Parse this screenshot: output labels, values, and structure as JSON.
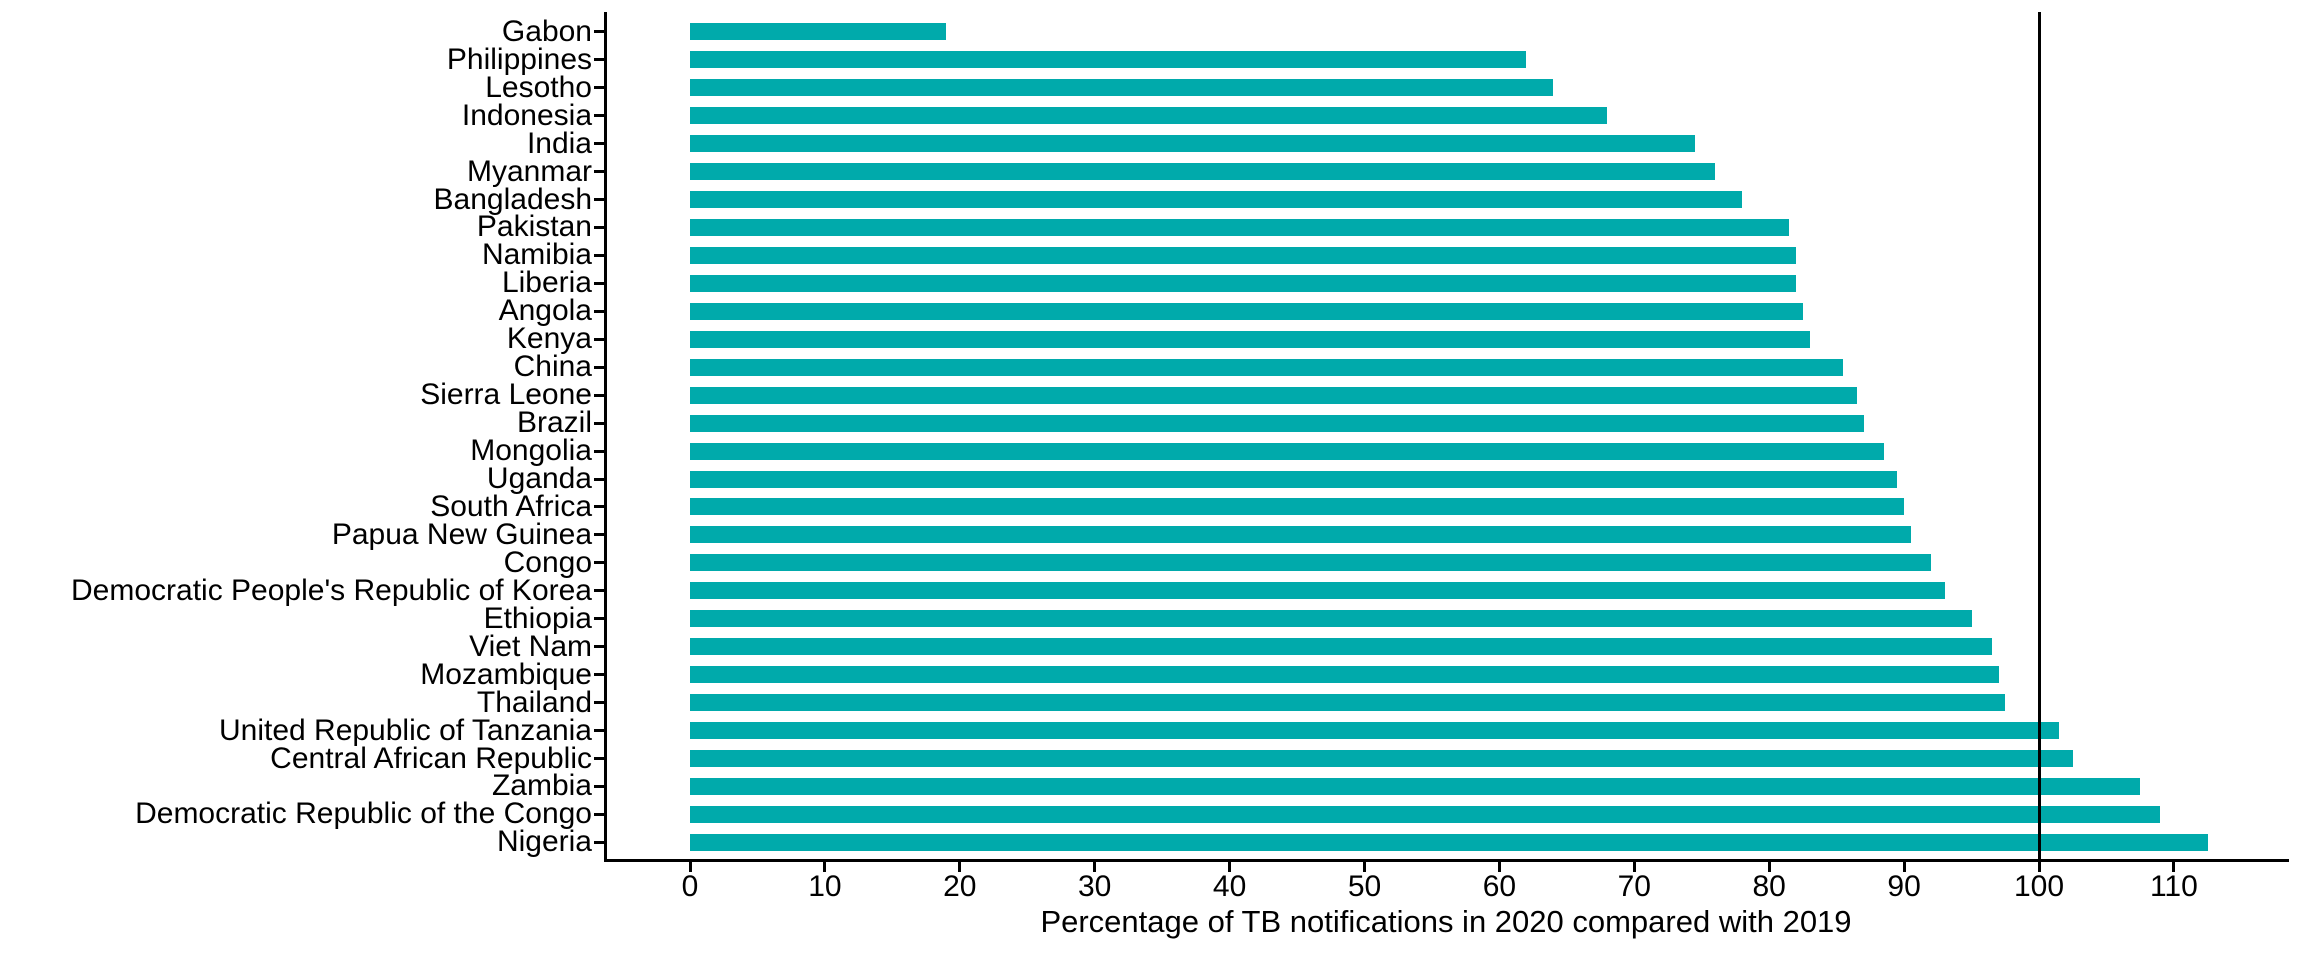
{
  "chart_data": {
    "type": "bar",
    "orientation": "horizontal",
    "title": "",
    "xlabel": "Percentage of TB notifications in 2020 compared with 2019",
    "ylabel": "",
    "categories": [
      "Gabon",
      "Philippines",
      "Lesotho",
      "Indonesia",
      "India",
      "Myanmar",
      "Bangladesh",
      "Pakistan",
      "Namibia",
      "Liberia",
      "Angola",
      "Kenya",
      "China",
      "Sierra Leone",
      "Brazil",
      "Mongolia",
      "Uganda",
      "South Africa",
      "Papua New Guinea",
      "Congo",
      "Democratic People's Republic of Korea",
      "Ethiopia",
      "Viet Nam",
      "Mozambique",
      "Thailand",
      "United Republic of Tanzania",
      "Central African Republic",
      "Zambia",
      "Democratic Republic of the Congo",
      "Nigeria"
    ],
    "values": [
      19,
      62,
      64,
      68,
      74.5,
      76,
      78,
      81.5,
      82,
      82,
      82.5,
      83,
      85.5,
      86.5,
      87,
      88.5,
      89.5,
      90,
      90.5,
      92,
      93,
      95,
      96.5,
      97,
      97.5,
      101.5,
      102.5,
      107.5,
      109,
      112.5
    ],
    "xlim": [
      0,
      118
    ],
    "xticks": [
      0,
      10,
      20,
      30,
      40,
      50,
      60,
      70,
      80,
      90,
      100,
      110
    ],
    "reference_line_x": 100,
    "bar_color": "#00AAAB",
    "axis_color": "#000000",
    "background": "#FFFFFF",
    "grid": false,
    "legend": false
  }
}
